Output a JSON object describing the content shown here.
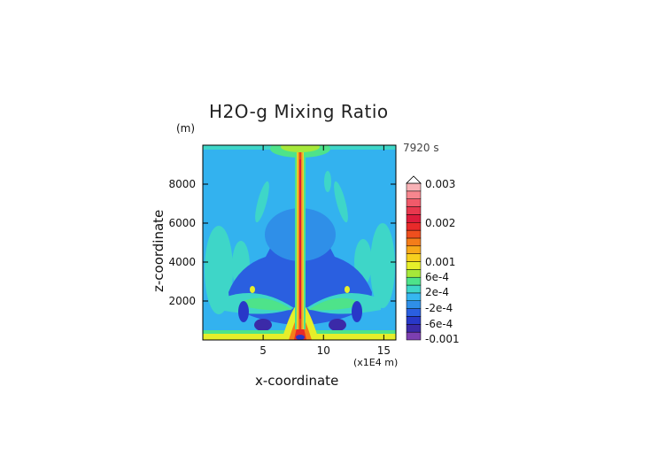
{
  "chart_data": {
    "type": "heatmap",
    "title": "H2O-g Mixing Ratio",
    "xlabel": "x-coordinate",
    "ylabel": "z-coordinate",
    "x_unit": "(x1E4 m)",
    "y_unit": "(m)",
    "time_label": "7920 s",
    "xlim": [
      0,
      16
    ],
    "ylim": [
      0,
      10000
    ],
    "x_ticks": [
      5,
      10,
      15
    ],
    "y_ticks": [
      2000,
      4000,
      6000,
      8000
    ],
    "colorbar": {
      "labels": [
        {
          "text": "0.003",
          "value": 0.003
        },
        {
          "text": "0.002",
          "value": 0.002
        },
        {
          "text": "0.001",
          "value": 0.001
        },
        {
          "text": "6e-4",
          "value": 0.0006
        },
        {
          "text": "2e-4",
          "value": 0.0002
        },
        {
          "text": "-2e-4",
          "value": -0.0002
        },
        {
          "text": "-6e-4",
          "value": -0.0006
        },
        {
          "text": "-0.001",
          "value": -0.001
        }
      ],
      "colors": [
        "#7d3fb0",
        "#3b2aa8",
        "#2838c8",
        "#2a5fe0",
        "#2f8fe8",
        "#36b7f0",
        "#3ed6c8",
        "#4ee38a",
        "#a6e83a",
        "#e6ee2a",
        "#f6d01e",
        "#f7a91a",
        "#f47d1a",
        "#ee4f1e",
        "#e82a2a",
        "#dd1c3c",
        "#e8384e",
        "#f15a6a",
        "#f7868e",
        "#f8b2b6"
      ]
    }
  }
}
